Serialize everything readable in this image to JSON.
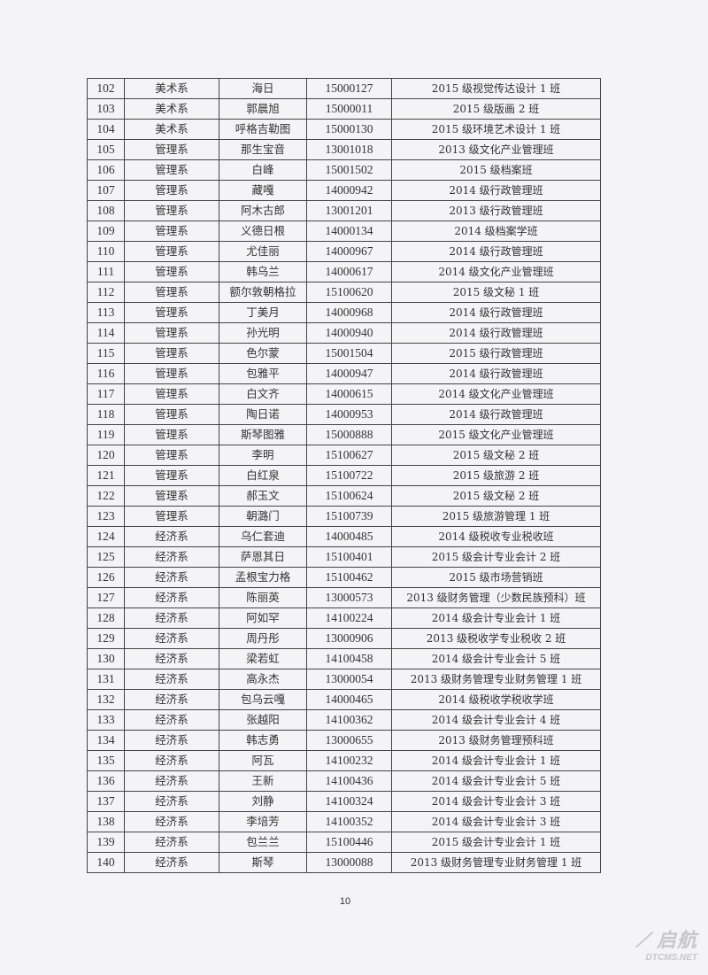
{
  "table": {
    "rows": [
      [
        "102",
        "美术系",
        "海日",
        "15000127",
        "2015 级视觉传达设计 1 班"
      ],
      [
        "103",
        "美术系",
        "郭晨旭",
        "15000011",
        "2015 级版画 2 班"
      ],
      [
        "104",
        "美术系",
        "呼格吉勒图",
        "15000130",
        "2015 级环境艺术设计 1 班"
      ],
      [
        "105",
        "管理系",
        "那生宝音",
        "13001018",
        "2013 级文化产业管理班"
      ],
      [
        "106",
        "管理系",
        "白峰",
        "15001502",
        "2015 级档案班"
      ],
      [
        "107",
        "管理系",
        "藏嘎",
        "14000942",
        "2014 级行政管理班"
      ],
      [
        "108",
        "管理系",
        "阿木古郎",
        "13001201",
        "2013 级行政管理班"
      ],
      [
        "109",
        "管理系",
        "义德日根",
        "14000134",
        "2014 级档案学班"
      ],
      [
        "110",
        "管理系",
        "尤佳丽",
        "14000967",
        "2014 级行政管理班"
      ],
      [
        "111",
        "管理系",
        "韩乌兰",
        "14000617",
        "2014 级文化产业管理班"
      ],
      [
        "112",
        "管理系",
        "额尔敦朝格拉",
        "15100620",
        "2015 级文秘 1 班"
      ],
      [
        "113",
        "管理系",
        "丁美月",
        "14000968",
        "2014 级行政管理班"
      ],
      [
        "114",
        "管理系",
        "孙光明",
        "14000940",
        "2014 级行政管理班"
      ],
      [
        "115",
        "管理系",
        "色尔蒙",
        "15001504",
        "2015 级行政管理班"
      ],
      [
        "116",
        "管理系",
        "包雅平",
        "14000947",
        "2014 级行政管理班"
      ],
      [
        "117",
        "管理系",
        "白文齐",
        "14000615",
        "2014 级文化产业管理班"
      ],
      [
        "118",
        "管理系",
        "陶日诺",
        "14000953",
        "2014 级行政管理班"
      ],
      [
        "119",
        "管理系",
        "斯琴图雅",
        "15000888",
        "2015 级文化产业管理班"
      ],
      [
        "120",
        "管理系",
        "李明",
        "15100627",
        "2015 级文秘 2 班"
      ],
      [
        "121",
        "管理系",
        "白红泉",
        "15100722",
        "2015 级旅游 2 班"
      ],
      [
        "122",
        "管理系",
        "郝玉文",
        "15100624",
        "2015 级文秘 2 班"
      ],
      [
        "123",
        "管理系",
        "朝潞门",
        "15100739",
        "2015 级旅游管理 1 班"
      ],
      [
        "124",
        "经济系",
        "乌仁套迪",
        "14000485",
        "2014 级税收专业税收班"
      ],
      [
        "125",
        "经济系",
        "萨恩其日",
        "15100401",
        "2015 级会计专业会计 2 班"
      ],
      [
        "126",
        "经济系",
        "孟根宝力格",
        "15100462",
        "2015 级市场营销班"
      ],
      [
        "127",
        "经济系",
        "陈丽英",
        "13000573",
        "2013 级财务管理（少数民族预科）班"
      ],
      [
        "128",
        "经济系",
        "阿如罕",
        "14100224",
        "2014 级会计专业会计 1 班"
      ],
      [
        "129",
        "经济系",
        "周丹彤",
        "13000906",
        "2013 级税收学专业税收 2 班"
      ],
      [
        "130",
        "经济系",
        "梁若虹",
        "14100458",
        "2014 级会计专业会计 5 班"
      ],
      [
        "131",
        "经济系",
        "高永杰",
        "13000054",
        "2013 级财务管理专业财务管理 1 班"
      ],
      [
        "132",
        "经济系",
        "包乌云嘎",
        "14000465",
        "2014 级税收学税收学班"
      ],
      [
        "133",
        "经济系",
        "张越阳",
        "14100362",
        "2014 级会计专业会计 4 班"
      ],
      [
        "134",
        "经济系",
        "韩志勇",
        "13000655",
        "2013 级财务管理预科班"
      ],
      [
        "135",
        "经济系",
        "阿瓦",
        "14100232",
        "2014 级会计专业会计 1 班"
      ],
      [
        "136",
        "经济系",
        "王新",
        "14100436",
        "2014 级会计专业会计 5 班"
      ],
      [
        "137",
        "经济系",
        "刘静",
        "14100324",
        "2014 级会计专业会计 3 班"
      ],
      [
        "138",
        "经济系",
        "李培芳",
        "14100352",
        "2014 级会计专业会计 3 班"
      ],
      [
        "139",
        "经济系",
        "包兰兰",
        "15100446",
        "2015 级会计专业会计 1 班"
      ],
      [
        "140",
        "经济系",
        "斯琴",
        "13000088",
        "2013 级财务管理专业财务管理 1 班"
      ]
    ]
  },
  "page_number": "10",
  "watermark": {
    "logo": "启航",
    "site": "DTCMS.NET"
  }
}
